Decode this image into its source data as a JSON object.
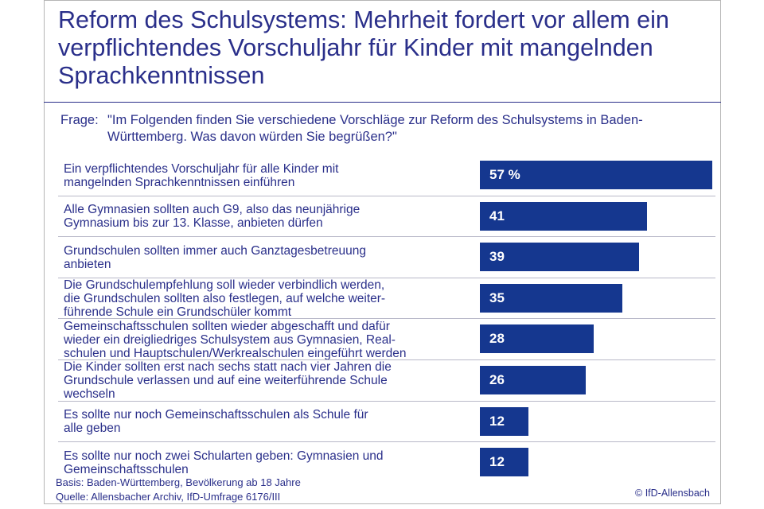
{
  "chart_data": {
    "type": "bar",
    "orientation": "horizontal",
    "title": "Reform des Schulsystems: Mehrheit fordert vor allem ein verpflichtendes Vorschuljahr für Kinder mit mangelnden Sprachkenntnissen",
    "question_label": "Frage:",
    "question": "\"Im Folgenden finden Sie verschiedene Vorschläge zur Reform des Schulsystems in Baden-Württemberg. Was davon würden Sie begrüßen?\"",
    "categories": [
      "Ein verpflichtendes Vorschuljahr für alle Kinder mit mangelnden Sprachkenntnissen einführen",
      "Alle Gymnasien sollten auch G9, also das neunjährige Gymnasium bis zur 13. Klasse, anbieten dürfen",
      "Grundschulen sollten immer auch Ganztagesbetreuung anbieten",
      "Die Grundschulempfehlung soll wieder verbindlich werden, die Grundschulen sollten also festlegen, auf welche weiterführende Schule ein Grundschüler kommt",
      "Gemeinschaftsschulen sollten wieder abgeschafft und dafür wieder ein dreigliedriges Schulsystem aus Gymnasien, Realschulen und Hauptschulen/Werkrealschulen eingeführt werden",
      "Die Kinder sollten erst nach sechs statt nach vier Jahren die Grundschule verlassen und auf eine weiterführende Schule wechseln",
      "Es sollte nur noch Gemeinschaftsschulen als Schule für alle geben",
      "Es sollte nur noch zwei Schularten geben: Gymnasien und Gemeinschaftsschulen"
    ],
    "label_lines": [
      [
        "Ein verpflichtendes Vorschuljahr für alle Kinder mit",
        "mangelnden Sprachkenntnissen einführen"
      ],
      [
        "Alle Gymnasien sollten auch G9, also das neunjährige",
        "Gymnasium bis zur 13. Klasse, anbieten dürfen"
      ],
      [
        "Grundschulen sollten immer auch Ganztagesbetreuung",
        "anbieten"
      ],
      [
        "Die Grundschulempfehlung soll wieder verbindlich werden,",
        "die Grundschulen sollten also festlegen, auf welche weiter-",
        "führende Schule ein Grundschüler kommt"
      ],
      [
        "Gemeinschaftsschulen sollten wieder abgeschafft und dafür",
        "wieder ein dreigliedriges Schulsystem aus Gymnasien, Real-",
        "schulen und Hauptschulen/Werkrealschulen eingeführt werden"
      ],
      [
        "Die Kinder sollten erst nach sechs statt nach vier Jahren die",
        "Grundschule verlassen und auf eine weiterführende Schule",
        "wechseln"
      ],
      [
        "Es sollte nur noch Gemeinschaftsschulen als Schule für",
        "alle geben"
      ],
      [
        "Es sollte nur noch zwei Schularten geben: Gymnasien und",
        "Gemeinschaftsschulen"
      ]
    ],
    "values": [
      57,
      41,
      39,
      35,
      28,
      26,
      12,
      12
    ],
    "value_labels": [
      "57 %",
      "41",
      "39",
      "35",
      "28",
      "26",
      "12",
      "12"
    ],
    "unit": "%",
    "xlim": [
      0,
      57
    ],
    "bar_color": "#15378f",
    "grid": false
  },
  "footer": {
    "basis": "Basis: Baden-Württemberg, Bevölkerung ab 18 Jahre",
    "source": "Quelle: Allensbacher Archiv, IfD-Umfrage 6176/III",
    "copyright": "© IfD-Allensbach"
  }
}
